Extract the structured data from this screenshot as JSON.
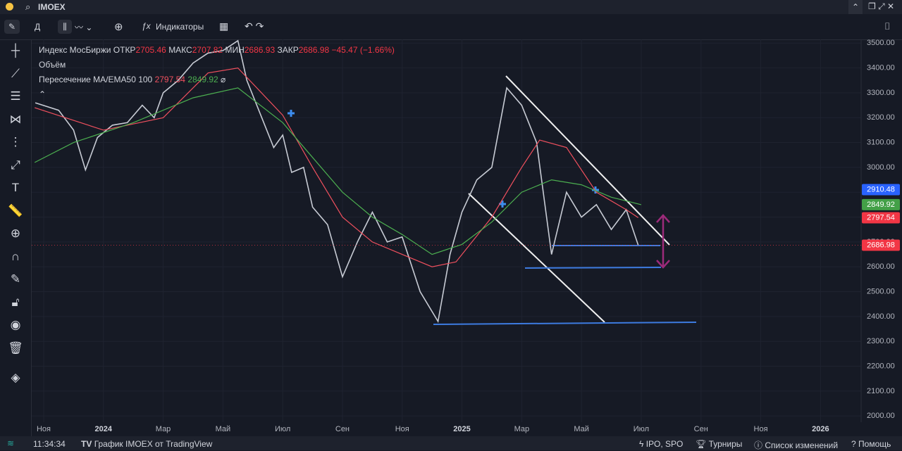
{
  "header": {
    "symbol": "IMOEX"
  },
  "toolbar": {
    "interval": "Д",
    "indicators": "Индикаторы"
  },
  "legend": {
    "name": "Индекс МосБиржи",
    "open_label": "ОТКР",
    "open": "2705.46",
    "high_label": "МАКС",
    "high": "2707.82",
    "low_label": "МИН",
    "low": "2686.93",
    "close_label": "ЗАКР",
    "close": "2686.98",
    "change": "−45.47 (−1.66%)",
    "volume": "Объём",
    "indicator": "Пересечение MA/EMA50 100",
    "ma1": "2797.54",
    "ma2": "2849.92"
  },
  "footer": {
    "time": "11:34:34",
    "chart_link": "График IMOEX от TradingView",
    "ipo": "IPO, SPO",
    "tournaments": "Турниры",
    "changes": "Список изменений",
    "help": "Помощь"
  },
  "chart_data": {
    "type": "line",
    "xlim": [
      -0.4,
      27.36
    ],
    "ylim": [
      1975,
      3515
    ],
    "xticks": [
      {
        "value": 0,
        "label": "Ноя"
      },
      {
        "value": 2,
        "label": "2024"
      },
      {
        "value": 4,
        "label": "Мар"
      },
      {
        "value": 6,
        "label": "Май"
      },
      {
        "value": 8,
        "label": "Июл"
      },
      {
        "value": 10,
        "label": "Сен"
      },
      {
        "value": 12,
        "label": "Ноя"
      },
      {
        "value": 14,
        "label": "2025"
      },
      {
        "value": 16,
        "label": "Мар"
      },
      {
        "value": 18,
        "label": "Май"
      },
      {
        "value": 20,
        "label": "Июл"
      },
      {
        "value": 22,
        "label": "Сен"
      },
      {
        "value": 24,
        "label": "Ноя"
      },
      {
        "value": 26,
        "label": "2026"
      }
    ],
    "yticks": [
      {
        "value": 2000,
        "label": "2000.00"
      },
      {
        "value": 2100,
        "label": "2100.00"
      },
      {
        "value": 2200,
        "label": "2200.00"
      },
      {
        "value": 2300,
        "label": "2300.00"
      },
      {
        "value": 2400,
        "label": "2400.00"
      },
      {
        "value": 2500,
        "label": "2500.00"
      },
      {
        "value": 2600,
        "label": "2600.00"
      },
      {
        "value": 2700,
        "label": "2700.00"
      },
      {
        "value": 2800,
        "label": "2800.00"
      },
      {
        "value": 2900,
        "label": "2900.00"
      },
      {
        "value": 3000,
        "label": "3000.00"
      },
      {
        "value": 3100,
        "label": "3100.00"
      },
      {
        "value": 3200,
        "label": "3200.00"
      },
      {
        "value": 3300,
        "label": "3300.00"
      },
      {
        "value": 3400,
        "label": "3400.00"
      },
      {
        "value": 3500,
        "label": "3500.00"
      }
    ],
    "series": [
      {
        "name": "Индекс МосБиржи",
        "color": "#c7cbd4",
        "x": [
          -0.28,
          0.5,
          1,
          1.4,
          1.8,
          2.3,
          2.8,
          3.3,
          3.7,
          4,
          4.5,
          5,
          5.5,
          6,
          6.5,
          6.8,
          7.3,
          7.7,
          8,
          8.3,
          8.7,
          9,
          9.5,
          10,
          10.5,
          11,
          11.5,
          12,
          12.6,
          13.2,
          13.6,
          14,
          14.5,
          15,
          15.5,
          16,
          16.5,
          17,
          17.5,
          18,
          18.5,
          19,
          19.5,
          19.9
        ],
        "values": [
          3260,
          3230,
          3150,
          2990,
          3120,
          3170,
          3180,
          3250,
          3200,
          3300,
          3350,
          3420,
          3460,
          3470,
          3510,
          3350,
          3200,
          3080,
          3130,
          2980,
          3000,
          2840,
          2770,
          2560,
          2700,
          2820,
          2700,
          2720,
          2500,
          2380,
          2650,
          2820,
          2950,
          3000,
          3320,
          3250,
          3100,
          2650,
          2900,
          2800,
          2850,
          2750,
          2830,
          2687
        ]
      },
      {
        "color": "#f0505e",
        "x": [
          -0.3,
          2,
          4,
          5.5,
          6.5,
          8,
          9,
          10,
          11,
          12,
          13,
          13.8,
          15,
          16,
          16.6,
          17.5,
          18.5,
          19.5,
          19.9
        ],
        "values": [
          3240,
          3150,
          3200,
          3380,
          3400,
          3210,
          3000,
          2800,
          2700,
          2650,
          2600,
          2620,
          2800,
          3000,
          3110,
          3080,
          2900,
          2830,
          2797.54
        ]
      },
      {
        "color": "#4caf50",
        "x": [
          -0.3,
          1,
          3,
          5,
          6.5,
          8,
          9,
          10,
          11,
          12,
          13,
          14,
          15,
          16,
          17,
          18,
          19,
          20
        ],
        "values": [
          3020,
          3100,
          3180,
          3280,
          3320,
          3180,
          3040,
          2900,
          2800,
          2730,
          2650,
          2690,
          2780,
          2900,
          2950,
          2930,
          2880,
          2849.92
        ]
      }
    ],
    "price_tags": [
      {
        "value": 2910.48,
        "label": "2910.48",
        "color": "#2962ff"
      },
      {
        "value": 2849.92,
        "label": "2849.92",
        "color": "#43a047"
      },
      {
        "value": 2797.54,
        "label": "2797.54",
        "color": "#f23645"
      },
      {
        "value": 2686.98,
        "label": "2686.98",
        "color": "#f23645"
      }
    ]
  }
}
